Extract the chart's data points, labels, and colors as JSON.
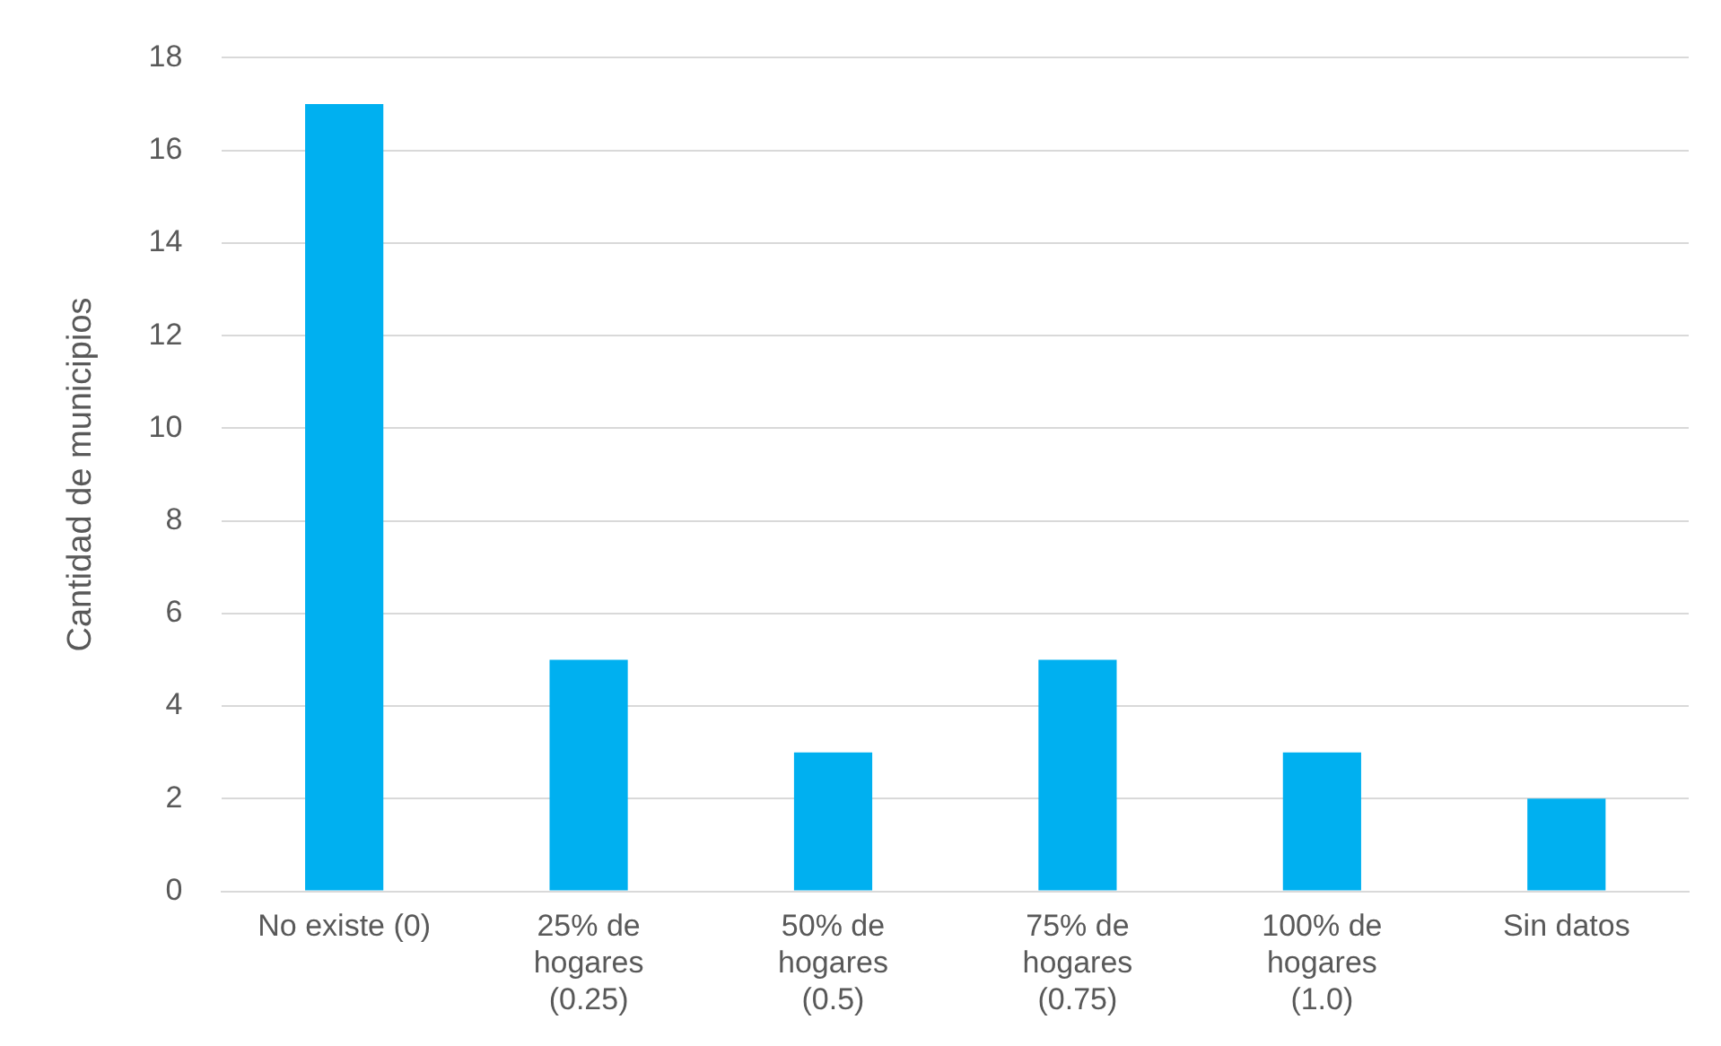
{
  "chart_data": {
    "type": "bar",
    "ylabel": "Cantidad de municipios",
    "categories": [
      "No existe (0)",
      "25% de\nhogares\n(0.25)",
      "50% de\nhogares\n(0.5)",
      "75% de\nhogares\n(0.75)",
      "100% de\nhogares\n(1.0)",
      "Sin datos"
    ],
    "values": [
      17,
      5,
      3,
      5,
      3,
      2
    ],
    "color": "#00b0f0",
    "ylim": [
      0,
      18
    ],
    "yticks": [
      0,
      2,
      4,
      6,
      8,
      10,
      12,
      14,
      16,
      18
    ],
    "grid": "y",
    "legend": false
  }
}
